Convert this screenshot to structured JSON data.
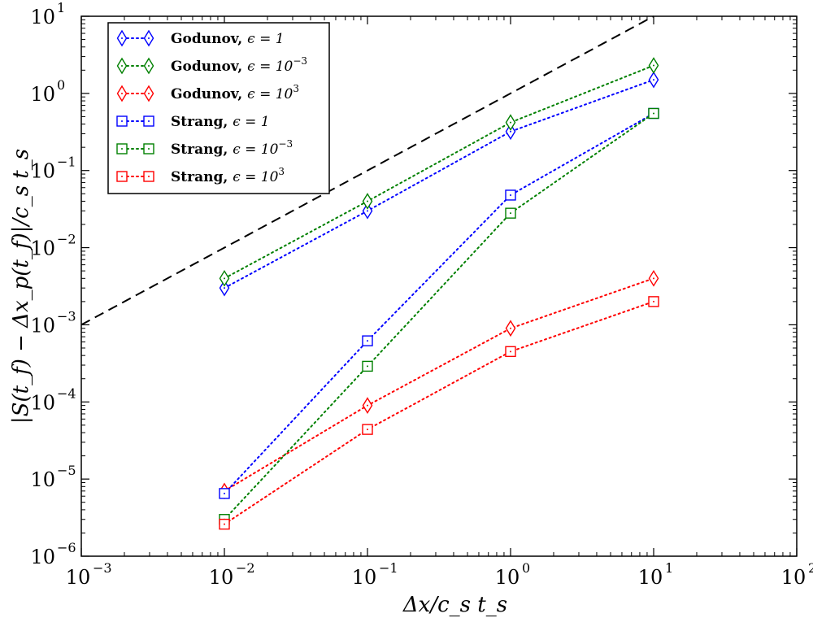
{
  "chart_data": {
    "type": "scatter",
    "title": "",
    "xlabel": "Δx/c_s t_s",
    "ylabel": "|S(t_f) − Δx_p(t_f)|/c_s t_s",
    "xscale": "log",
    "yscale": "log",
    "xlim": [
      0.001,
      100
    ],
    "ylim": [
      1e-06,
      10
    ],
    "x_ticks": [
      {
        "value": 0.001,
        "base": "10",
        "exp": "−3"
      },
      {
        "value": 0.01,
        "base": "10",
        "exp": "−2"
      },
      {
        "value": 0.1,
        "base": "10",
        "exp": "−1"
      },
      {
        "value": 1,
        "base": "10",
        "exp": "0"
      },
      {
        "value": 10,
        "base": "10",
        "exp": "1"
      },
      {
        "value": 100,
        "base": "10",
        "exp": "2"
      }
    ],
    "y_ticks": [
      {
        "value": 1e-06,
        "base": "10",
        "exp": "−6"
      },
      {
        "value": 1e-05,
        "base": "10",
        "exp": "−5"
      },
      {
        "value": 0.0001,
        "base": "10",
        "exp": "−4"
      },
      {
        "value": 0.001,
        "base": "10",
        "exp": "−3"
      },
      {
        "value": 0.01,
        "base": "10",
        "exp": "−2"
      },
      {
        "value": 0.1,
        "base": "10",
        "exp": "−1"
      },
      {
        "value": 1,
        "base": "10",
        "exp": "0"
      },
      {
        "value": 10,
        "base": "10",
        "exp": "1"
      }
    ],
    "reference_line": {
      "style": "dashed",
      "color": "#000000",
      "x": [
        0.001,
        10
      ],
      "y": [
        0.001,
        10
      ]
    },
    "legend_position": "top-left",
    "x": [
      0.01,
      0.1,
      1,
      10
    ],
    "series": [
      {
        "name": "Godunov",
        "eps_base": "ϵ = ",
        "eps_value": "1",
        "eps_exp": "",
        "marker": "diamond",
        "color": "#0000ff",
        "values": [
          0.003,
          0.03,
          0.32,
          1.5
        ]
      },
      {
        "name": "Godunov",
        "eps_base": "ϵ = 10",
        "eps_value": "",
        "eps_exp": "−3",
        "marker": "diamond",
        "color": "#008000",
        "values": [
          0.004,
          0.04,
          0.42,
          2.3
        ]
      },
      {
        "name": "Godunov",
        "eps_base": "ϵ = 10",
        "eps_value": "",
        "eps_exp": "3",
        "marker": "diamond",
        "color": "#ff0000",
        "values": [
          7e-06,
          9e-05,
          0.0009,
          0.004
        ]
      },
      {
        "name": "Strang",
        "eps_base": "ϵ = ",
        "eps_value": "1",
        "eps_exp": "",
        "marker": "square",
        "color": "#0000ff",
        "values": [
          6.5e-06,
          0.00062,
          0.048,
          0.55
        ]
      },
      {
        "name": "Strang",
        "eps_base": "ϵ = 10",
        "eps_value": "",
        "eps_exp": "−3",
        "marker": "square",
        "color": "#008000",
        "values": [
          3e-06,
          0.00029,
          0.028,
          0.55
        ]
      },
      {
        "name": "Strang",
        "eps_base": "ϵ = 10",
        "eps_value": "",
        "eps_exp": "3",
        "marker": "square",
        "color": "#ff0000",
        "values": [
          2.6e-06,
          4.4e-05,
          0.00045,
          0.002
        ]
      }
    ]
  }
}
